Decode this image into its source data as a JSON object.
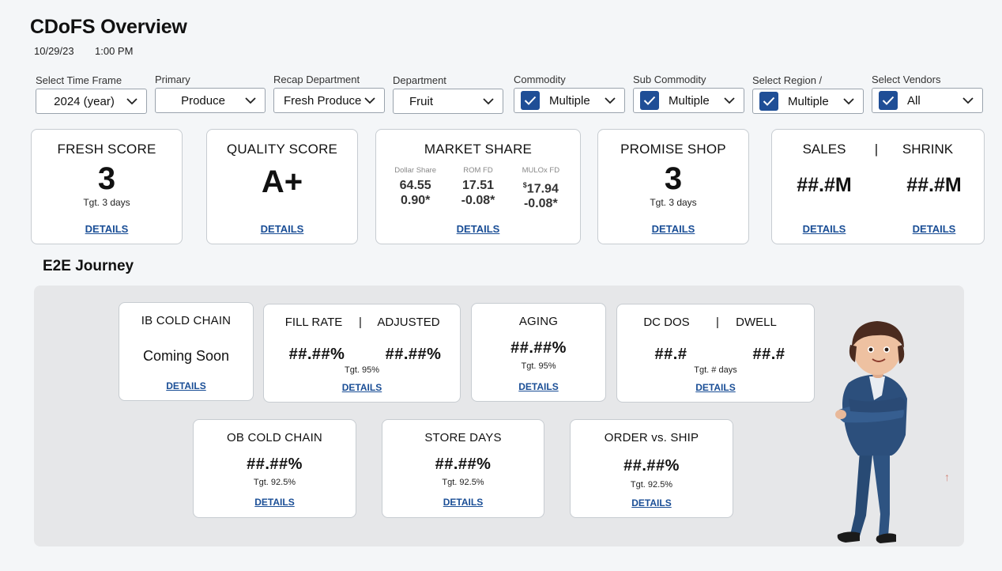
{
  "header": {
    "title": "CDoFS Overview",
    "date": "10/29/23",
    "time": "1:00 PM"
  },
  "filters": [
    {
      "label": "Select Time Frame",
      "value": "2024 (year)",
      "checked": false
    },
    {
      "label": "Primary",
      "value": "Produce",
      "checked": false
    },
    {
      "label": "Recap Department",
      "value": "Fresh Produce",
      "checked": false
    },
    {
      "label": "Department",
      "value": "Fruit",
      "checked": false
    },
    {
      "label": "Commodity",
      "value": "Multiple",
      "checked": true
    },
    {
      "label": "Sub Commodity",
      "value": "Multiple",
      "checked": true
    },
    {
      "label": "Select Region /",
      "value": "Multiple",
      "checked": true
    },
    {
      "label": "Select Vendors",
      "value": "All",
      "checked": true
    }
  ],
  "cards": {
    "fresh": {
      "title": "FRESH SCORE",
      "value": "3",
      "target": "Tgt. 3 days",
      "link": "DETAILS"
    },
    "quality": {
      "title": "QUALITY SCORE",
      "value": "A+",
      "link": "DETAILS"
    },
    "market": {
      "title": "MARKET SHARE",
      "columns": [
        {
          "label": "Dollar Share",
          "value": "64.55",
          "change": "0.90*"
        },
        {
          "label": "ROM FD",
          "value": "17.51",
          "change": "-0.08*"
        },
        {
          "label": "MULOx FD",
          "prefix": "$",
          "value": "17.94",
          "change": "-0.08*"
        }
      ],
      "link": "DETAILS"
    },
    "promise": {
      "title": "PROMISE SHOP",
      "value": "3",
      "target": "Tgt. 3 days",
      "link": "DETAILS"
    },
    "sales": {
      "title_left": "SALES",
      "separator": "|",
      "title_right": "SHRINK",
      "value_left": "##.#M",
      "value_right": "##.#M",
      "link_left": "DETAILS",
      "link_right": "DETAILS"
    }
  },
  "journey": {
    "title": "E2E Journey",
    "ib": {
      "title": "IB COLD CHAIN",
      "status": "Coming Soon",
      "link": "DETAILS"
    },
    "fill": {
      "title_left": "FILL RATE",
      "separator": "|",
      "title_right": "ADJUSTED",
      "value_left": "##.##%",
      "value_right": "##.##%",
      "target": "Tgt. 95%",
      "link": "DETAILS"
    },
    "aging": {
      "title": "AGING",
      "value": "##.##%",
      "target": "Tgt. 95%",
      "link": "DETAILS"
    },
    "dcdos": {
      "title_left": "DC DOS",
      "separator": "|",
      "title_right": "DWELL",
      "value_left": "##.#",
      "value_right": "##.#",
      "target": "Tgt. # days",
      "link": "DETAILS"
    },
    "ob": {
      "title": "OB COLD CHAIN",
      "value": "##.##%",
      "target": "Tgt. 92.5%",
      "link": "DETAILS"
    },
    "store": {
      "title": "STORE DAYS",
      "value": "##.##%",
      "target": "Tgt. 92.5%",
      "link": "DETAILS"
    },
    "order": {
      "title": "ORDER vs. SHIP",
      "value": "##.##%",
      "target": "Tgt. 92.5%",
      "link": "DETAILS"
    }
  },
  "scroll_top": {
    "glyph": "↑"
  },
  "colors": {
    "accent": "#1f4e96",
    "link": "#1a4e96",
    "panel": "#e6e7e9",
    "background": "#f4f6f8"
  }
}
